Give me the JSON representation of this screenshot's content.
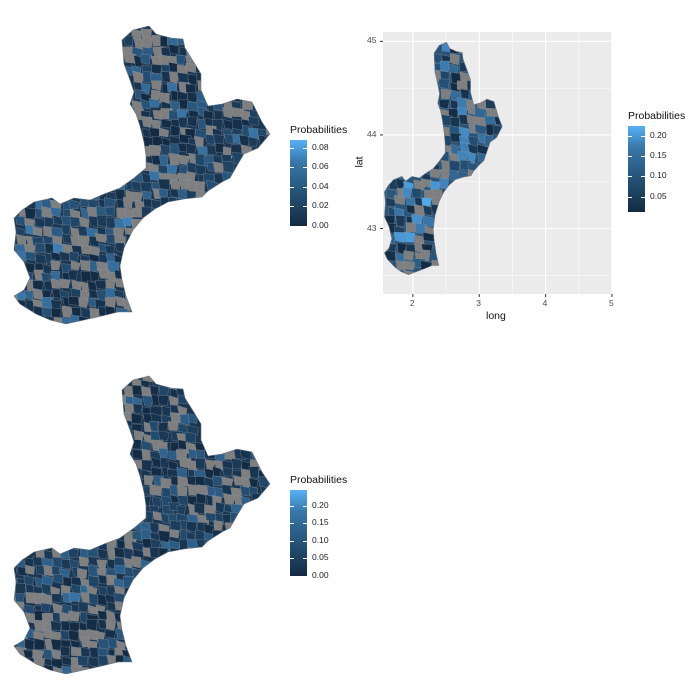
{
  "panels": [
    {
      "id": "map1",
      "legend": {
        "title": "Probabilities",
        "ticks": [
          "0.08",
          "0.06",
          "0.04",
          "0.02",
          "0.00"
        ],
        "tick_values": [
          0.08,
          0.06,
          0.04,
          0.02,
          0.0
        ],
        "range": [
          0.0,
          0.088
        ]
      },
      "colors": {
        "low": "#132b43",
        "high": "#56b1f7",
        "missing": "#7f7f7f"
      }
    },
    {
      "id": "map2",
      "legend": {
        "title": "Probabilities",
        "ticks": [
          "0.20",
          "0.15",
          "0.10",
          "0.05"
        ],
        "tick_values": [
          0.2,
          0.15,
          0.1,
          0.05
        ],
        "range": [
          0.012,
          0.225
        ]
      },
      "axes": {
        "xlabel": "long",
        "ylabel": "lat",
        "xticks": [
          "2",
          "3",
          "4",
          "5"
        ],
        "yticks": [
          "45",
          "44",
          "43"
        ]
      },
      "colors": {
        "low": "#132b43",
        "high": "#56b1f7",
        "missing": "#7f7f7f",
        "panel_bg": "#ebebeb",
        "grid": "#ffffff"
      }
    },
    {
      "id": "map3",
      "legend": {
        "title": "Probabilities",
        "ticks": [
          "0.20",
          "0.15",
          "0.10",
          "0.05",
          "0.00"
        ],
        "tick_values": [
          0.2,
          0.15,
          0.1,
          0.05,
          0.0
        ],
        "range": [
          0.0,
          0.245
        ]
      },
      "colors": {
        "low": "#132b43",
        "high": "#56b1f7",
        "missing": "#7f7f7f"
      }
    }
  ]
}
